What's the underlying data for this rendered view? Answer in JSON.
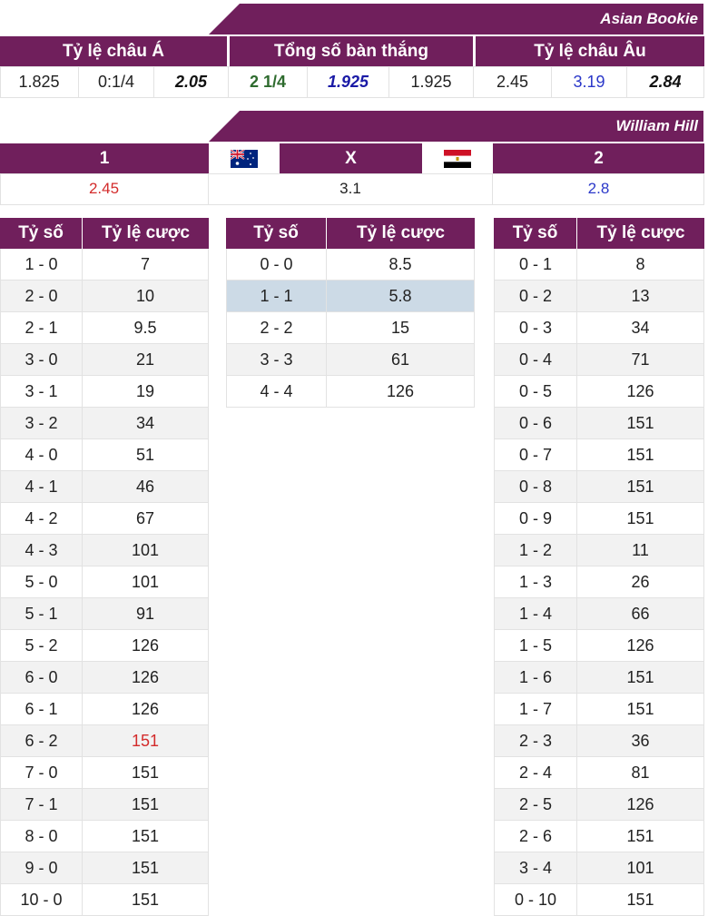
{
  "asian_bookie": {
    "title": "Asian Bookie",
    "headers": [
      "Tỷ lệ châu Á",
      "Tổng số bàn thắng",
      "Tỷ lệ châu Âu"
    ],
    "values": [
      "1.825",
      "0:1/4",
      "2.05",
      "2 1/4",
      "1.925",
      "1.925",
      "2.45",
      "3.19",
      "2.84"
    ]
  },
  "william_hill": {
    "title": "William Hill",
    "headers": [
      "1",
      "X",
      "2"
    ],
    "flags": [
      "australia-flag-icon",
      "egypt-flag-icon"
    ],
    "values": [
      "2.45",
      "3.1",
      "2.8"
    ]
  },
  "score_tables": {
    "col_score": "Tỷ số",
    "col_odds": "Tỷ lệ cược",
    "home": [
      [
        "1 - 0",
        "7"
      ],
      [
        "2 - 0",
        "10"
      ],
      [
        "2 - 1",
        "9.5"
      ],
      [
        "3 - 0",
        "21"
      ],
      [
        "3 - 1",
        "19"
      ],
      [
        "3 - 2",
        "34"
      ],
      [
        "4 - 0",
        "51"
      ],
      [
        "4 - 1",
        "46"
      ],
      [
        "4 - 2",
        "67"
      ],
      [
        "4 - 3",
        "101"
      ],
      [
        "5 - 0",
        "101"
      ],
      [
        "5 - 1",
        "91"
      ],
      [
        "5 - 2",
        "126"
      ],
      [
        "6 - 0",
        "126"
      ],
      [
        "6 - 1",
        "126"
      ],
      [
        "6 - 2",
        "151"
      ],
      [
        "7 - 0",
        "151"
      ],
      [
        "7 - 1",
        "151"
      ],
      [
        "8 - 0",
        "151"
      ],
      [
        "9 - 0",
        "151"
      ],
      [
        "10 - 0",
        "151"
      ]
    ],
    "draw": [
      [
        "0 - 0",
        "8.5"
      ],
      [
        "1 - 1",
        "5.8"
      ],
      [
        "2 - 2",
        "15"
      ],
      [
        "3 - 3",
        "61"
      ],
      [
        "4 - 4",
        "126"
      ]
    ],
    "away": [
      [
        "0 - 1",
        "8"
      ],
      [
        "0 - 2",
        "13"
      ],
      [
        "0 - 3",
        "34"
      ],
      [
        "0 - 4",
        "71"
      ],
      [
        "0 - 5",
        "126"
      ],
      [
        "0 - 6",
        "151"
      ],
      [
        "0 - 7",
        "151"
      ],
      [
        "0 - 8",
        "151"
      ],
      [
        "0 - 9",
        "151"
      ],
      [
        "1 - 2",
        "11"
      ],
      [
        "1 - 3",
        "26"
      ],
      [
        "1 - 4",
        "66"
      ],
      [
        "1 - 5",
        "126"
      ],
      [
        "1 - 6",
        "151"
      ],
      [
        "1 - 7",
        "151"
      ],
      [
        "2 - 3",
        "36"
      ],
      [
        "2 - 4",
        "81"
      ],
      [
        "2 - 5",
        "126"
      ],
      [
        "2 - 6",
        "151"
      ],
      [
        "3 - 4",
        "101"
      ],
      [
        "0 - 10",
        "151"
      ]
    ]
  },
  "colors": {
    "header_bg": "#701f5c",
    "highlight_row": "#ccdae6",
    "red": "#d32b2b",
    "blue": "#2b38c9"
  }
}
